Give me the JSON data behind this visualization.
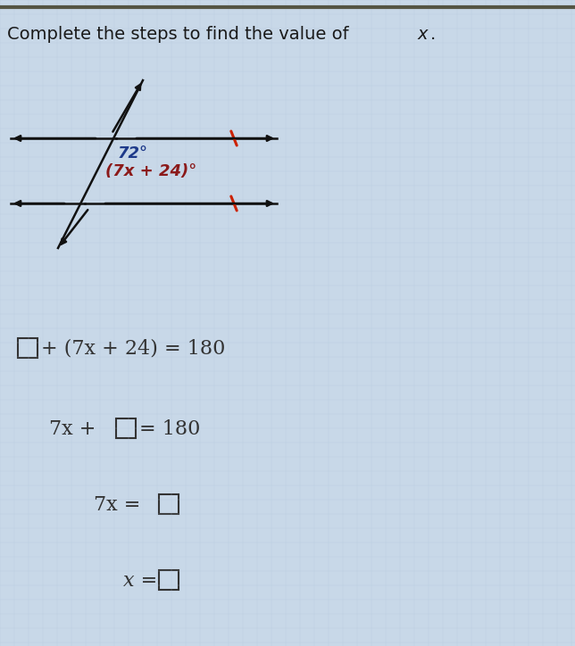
{
  "title": "Complete the steps to find the value of ",
  "title_x": "x",
  "title_dot": ".",
  "bg_color": "#c8d8e8",
  "text_color": "#1a1a1a",
  "font_size_title": 14,
  "font_size_eq": 16,
  "arrow_color": "#111111",
  "tick_color": "#cc2200",
  "angle1_label": "72°",
  "angle2_label": "(7x + 24)°",
  "angle1_color": "#1e3a8a",
  "angle2_color": "#8b1a1a",
  "eq_color": "#333333",
  "border_color": "#555544"
}
